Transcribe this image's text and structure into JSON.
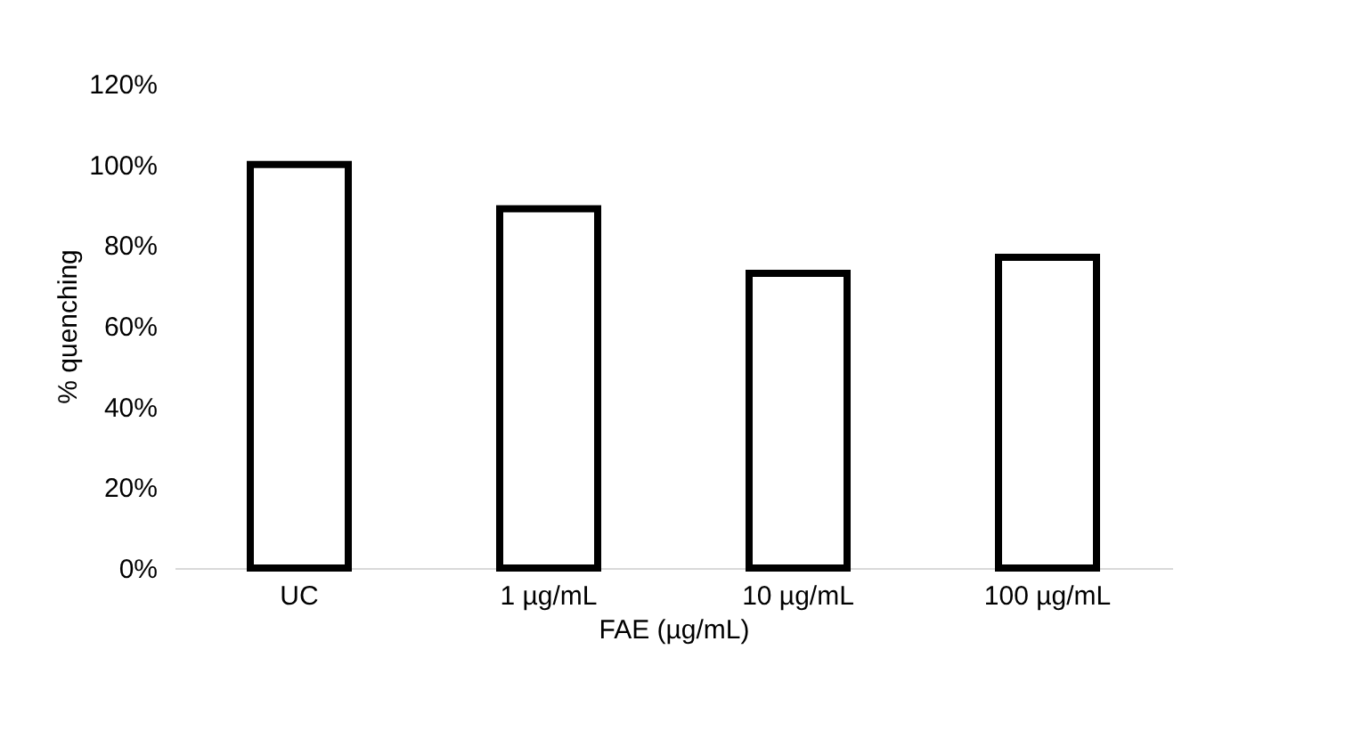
{
  "chart_data": {
    "type": "bar",
    "xlabel": "FAE (µg/mL)",
    "ylabel": "% quenching",
    "categories": [
      "UC",
      "1 µg/mL",
      "10 µg/mL",
      "100 µg/mL"
    ],
    "values": [
      100,
      89,
      73,
      77
    ],
    "color": "#ffffff",
    "ylim": [
      0,
      120
    ],
    "yticks": [
      {
        "value": 0,
        "label": "0%"
      },
      {
        "value": 20,
        "label": "20%"
      },
      {
        "value": 40,
        "label": "40%"
      },
      {
        "value": 60,
        "label": "60%"
      },
      {
        "value": 80,
        "label": "80%"
      },
      {
        "value": 100,
        "label": "100%"
      },
      {
        "value": 120,
        "label": "120%"
      }
    ],
    "grid": false
  }
}
